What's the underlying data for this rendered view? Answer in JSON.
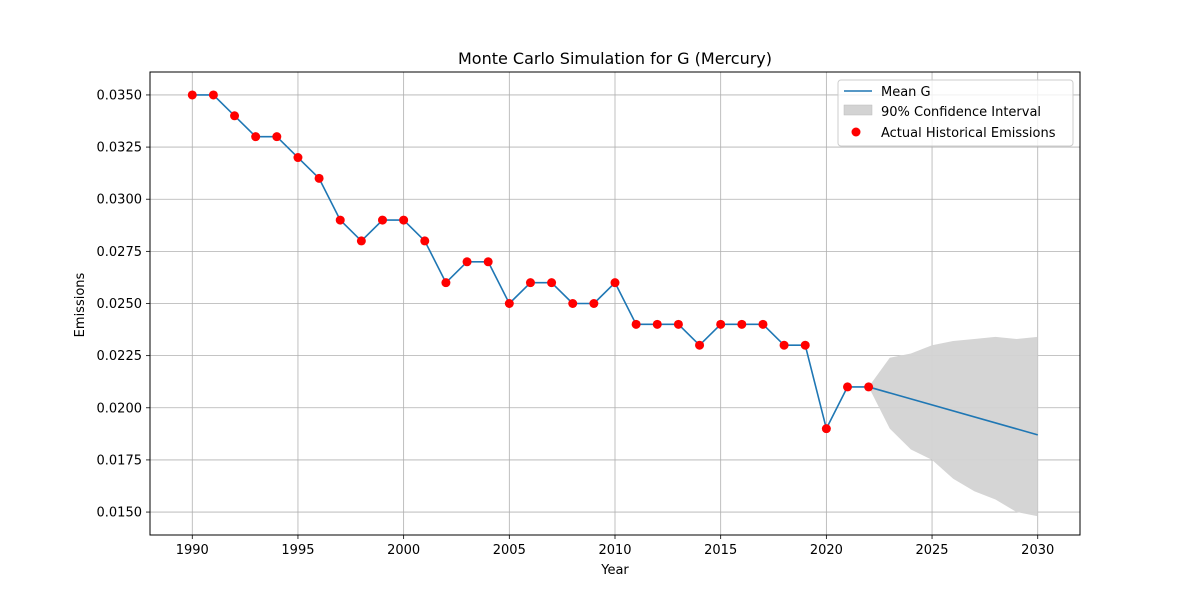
{
  "chart_data": {
    "type": "line",
    "title": "Monte Carlo Simulation for G (Mercury)",
    "xlabel": "Year",
    "ylabel": "Emissions",
    "xlim": [
      1988,
      2032
    ],
    "ylim": [
      0.0139,
      0.0361
    ],
    "xticks": [
      1990,
      1995,
      2000,
      2005,
      2010,
      2015,
      2020,
      2025,
      2030
    ],
    "xtick_labels": [
      "1990",
      "1995",
      "2000",
      "2005",
      "2010",
      "2015",
      "2020",
      "2025",
      "2030"
    ],
    "yticks": [
      0.015,
      0.0175,
      0.02,
      0.0225,
      0.025,
      0.0275,
      0.03,
      0.0325,
      0.035
    ],
    "ytick_labels": [
      "0.0150",
      "0.0175",
      "0.0200",
      "0.0225",
      "0.0250",
      "0.0275",
      "0.0300",
      "0.0325",
      "0.0350"
    ],
    "grid": true,
    "legend_position": "top-right",
    "series": [
      {
        "name": "Mean G",
        "kind": "line",
        "color": "#1f77b4",
        "x": [
          1990,
          1991,
          1992,
          1993,
          1994,
          1995,
          1996,
          1997,
          1998,
          1999,
          2000,
          2001,
          2002,
          2003,
          2004,
          2005,
          2006,
          2007,
          2008,
          2009,
          2010,
          2011,
          2012,
          2013,
          2014,
          2015,
          2016,
          2017,
          2018,
          2019,
          2020,
          2021,
          2022,
          2030
        ],
        "y": [
          0.035,
          0.035,
          0.034,
          0.033,
          0.033,
          0.032,
          0.031,
          0.029,
          0.028,
          0.029,
          0.029,
          0.028,
          0.026,
          0.027,
          0.027,
          0.025,
          0.026,
          0.026,
          0.025,
          0.025,
          0.026,
          0.024,
          0.024,
          0.024,
          0.023,
          0.024,
          0.024,
          0.024,
          0.023,
          0.023,
          0.019,
          0.021,
          0.021,
          0.0187
        ]
      },
      {
        "name": "90% Confidence Interval",
        "kind": "band",
        "color": "#d3d3d3",
        "x": [
          2022,
          2023,
          2024,
          2025,
          2026,
          2027,
          2028,
          2029,
          2030
        ],
        "upper": [
          0.021,
          0.0224,
          0.0226,
          0.023,
          0.0232,
          0.0233,
          0.0234,
          0.0233,
          0.0234
        ],
        "lower": [
          0.021,
          0.019,
          0.018,
          0.0175,
          0.0166,
          0.016,
          0.0156,
          0.015,
          0.0148
        ]
      },
      {
        "name": "Actual Historical Emissions",
        "kind": "scatter",
        "color": "#ff0000",
        "x": [
          1990,
          1991,
          1992,
          1993,
          1994,
          1995,
          1996,
          1997,
          1998,
          1999,
          2000,
          2001,
          2002,
          2003,
          2004,
          2005,
          2006,
          2007,
          2008,
          2009,
          2010,
          2011,
          2012,
          2013,
          2014,
          2015,
          2016,
          2017,
          2018,
          2019,
          2020,
          2021,
          2022
        ],
        "y": [
          0.035,
          0.035,
          0.034,
          0.033,
          0.033,
          0.032,
          0.031,
          0.029,
          0.028,
          0.029,
          0.029,
          0.028,
          0.026,
          0.027,
          0.027,
          0.025,
          0.026,
          0.026,
          0.025,
          0.025,
          0.026,
          0.024,
          0.024,
          0.024,
          0.023,
          0.024,
          0.024,
          0.024,
          0.023,
          0.023,
          0.019,
          0.021,
          0.021
        ]
      }
    ]
  }
}
